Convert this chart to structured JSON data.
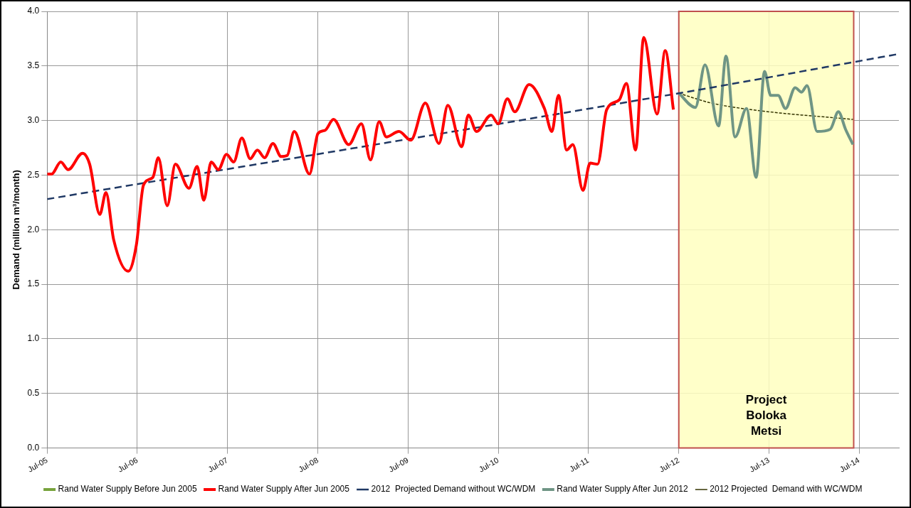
{
  "chart_data": {
    "type": "line",
    "ylabel": "Demand (million m³/month)",
    "xlim": [
      "2005-07-01",
      "2014-12-09"
    ],
    "ylim": [
      0,
      4
    ],
    "xticks": [
      {
        "value": "2005-07-01",
        "label": "Jul-05"
      },
      {
        "value": "2006-07-01",
        "label": "Jul-06"
      },
      {
        "value": "2007-07-01",
        "label": "Jul-07"
      },
      {
        "value": "2008-07-01",
        "label": "Jul-08"
      },
      {
        "value": "2009-07-01",
        "label": "Jul-09"
      },
      {
        "value": "2010-07-01",
        "label": "Jul-10"
      },
      {
        "value": "2011-07-01",
        "label": "Jul-11"
      },
      {
        "value": "2012-07-01",
        "label": "Jul-12"
      },
      {
        "value": "2013-07-01",
        "label": "Jul-13"
      },
      {
        "value": "2014-07-01",
        "label": "Jul-14"
      }
    ],
    "yticks": [
      {
        "value": 0,
        "label": "0.0"
      },
      {
        "value": 0.5,
        "label": "0.5"
      },
      {
        "value": 1,
        "label": "1.0"
      },
      {
        "value": 1.5,
        "label": "1.5"
      },
      {
        "value": 2,
        "label": "2.0"
      },
      {
        "value": 2.5,
        "label": "2.5"
      },
      {
        "value": 3,
        "label": "3.0"
      },
      {
        "value": 3.5,
        "label": "3.5"
      },
      {
        "value": 4,
        "label": "4.0"
      }
    ],
    "grid": true,
    "legend": "bottom",
    "marker": "none",
    "bands": [
      {
        "axis": "x",
        "from": "2012-07-01",
        "to": "2014-06-09",
        "label": "Project Boloka Metsi",
        "color": "#ffffc0"
      }
    ],
    "series": [
      {
        "name": "Rand Water Supply Before Jun 2005",
        "color": "#77a33c",
        "line_style": "solid"
      },
      {
        "name": "Rand Water Supply After Jun 2005",
        "color": "#ff0000",
        "line_style": "solid",
        "x": [
          "2005-07-01",
          "2005-07-19",
          "2005-08-25",
          "2005-09-24",
          "2005-11-21",
          "2005-12-20",
          "2006-01-30",
          "2006-02-24",
          "2006-03-27",
          "2006-05-25",
          "2006-06-27",
          "2006-07-26",
          "2006-09-02",
          "2006-09-24",
          "2006-10-30",
          "2006-12-02",
          "2007-01-26",
          "2007-02-28",
          "2007-03-27",
          "2007-04-26",
          "2007-05-25",
          "2007-06-27",
          "2007-07-26",
          "2007-08-28",
          "2007-10-01",
          "2007-10-30",
          "2007-11-28",
          "2008-01-01",
          "2008-02-03",
          "2008-02-28",
          "2008-03-27",
          "2008-05-28",
          "2008-07-01",
          "2008-07-30",
          "2008-09-02",
          "2008-11-03",
          "2008-12-24",
          "2009-01-30",
          "2009-03-06",
          "2009-04-04",
          "2009-05-25",
          "2009-07-12",
          "2009-09-09",
          "2009-11-03",
          "2009-12-09",
          "2010-02-03",
          "2010-03-02",
          "2010-04-04",
          "2010-06-02",
          "2010-07-01",
          "2010-08-07",
          "2010-09-06",
          "2010-11-03",
          "2011-01-04",
          "2011-02-03",
          "2011-03-02",
          "2011-04-04",
          "2011-04-29",
          "2011-06-09",
          "2011-07-08",
          "2011-08-07",
          "2011-09-13",
          "2011-11-03",
          "2011-12-02",
          "2012-01-08",
          "2012-02-10",
          "2012-04-04",
          "2012-05-07",
          "2012-06-09"
        ],
        "values": [
          2.51,
          2.51,
          2.62,
          2.55,
          2.7,
          2.6,
          2.14,
          2.34,
          1.91,
          1.62,
          1.86,
          2.41,
          2.48,
          2.66,
          2.22,
          2.6,
          2.38,
          2.58,
          2.27,
          2.62,
          2.55,
          2.69,
          2.62,
          2.84,
          2.65,
          2.73,
          2.66,
          2.79,
          2.67,
          2.68,
          2.9,
          2.51,
          2.88,
          2.91,
          3.01,
          2.78,
          2.97,
          2.64,
          2.99,
          2.85,
          2.9,
          2.82,
          3.16,
          2.79,
          3.14,
          2.76,
          3.05,
          2.9,
          3.05,
          2.97,
          3.2,
          3.08,
          3.33,
          3.11,
          2.9,
          3.23,
          2.73,
          2.78,
          2.36,
          2.61,
          2.6,
          3.1,
          3.19,
          3.34,
          2.73,
          3.76,
          3.06,
          3.64,
          3.1
        ]
      },
      {
        "name": "2012  Projected Demand without WC/WDM",
        "color": "#1f3864",
        "line_style": "dashed",
        "x": [
          "2005-07-01",
          "2012-07-01",
          "2014-12-09"
        ],
        "values": [
          2.28,
          3.25,
          3.61
        ]
      },
      {
        "name": "Rand Water Supply After Jun 2012",
        "color": "#6f9585",
        "line_style": "solid",
        "x": [
          "2012-07-01",
          "2012-09-06",
          "2012-10-15",
          "2012-12-09",
          "2013-01-08",
          "2013-02-14",
          "2013-04-01",
          "2013-05-10",
          "2013-06-13",
          "2013-07-08",
          "2013-08-07",
          "2013-09-06",
          "2013-10-15",
          "2013-11-10",
          "2013-12-02",
          "2014-01-12",
          "2014-03-06",
          "2014-04-08",
          "2014-05-07",
          "2014-06-06"
        ],
        "values": [
          3.25,
          3.12,
          3.51,
          2.95,
          3.59,
          2.85,
          3.11,
          2.48,
          3.45,
          3.23,
          3.23,
          3.11,
          3.3,
          3.26,
          3.32,
          2.9,
          2.92,
          3.08,
          2.92,
          2.78
        ]
      },
      {
        "name": "2012 Projected  Demand with WC/WDM",
        "color": "#333300",
        "line_style": "dotted",
        "x": [
          "2012-07-01",
          "2012-11-10",
          "2013-05-25",
          "2014-06-06"
        ],
        "values": [
          3.25,
          3.16,
          3.09,
          3.01
        ]
      }
    ]
  }
}
